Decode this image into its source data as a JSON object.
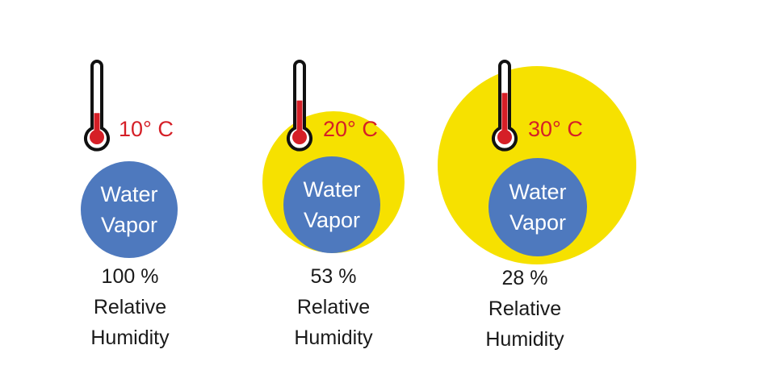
{
  "colors": {
    "vapor_fill": "#4e79be",
    "capacity_fill": "#f6e100",
    "thermometer_liquid": "#d51f27",
    "thermometer_outline": "#111111",
    "temperature_text": "#d51f27",
    "caption_text": "#1a1a1a"
  },
  "panels": [
    {
      "temperature": "10° C",
      "thermometer_fill_level": 0.33,
      "vapor_line1": "Water",
      "vapor_line2": "Vapor",
      "humidity_value": "100 %",
      "humidity_line1": "Relative",
      "humidity_line2": "Humidity"
    },
    {
      "temperature": "20° C",
      "thermometer_fill_level": 0.53,
      "vapor_line1": "Water",
      "vapor_line2": "Vapor",
      "humidity_value": "53 %",
      "humidity_line1": "Relative",
      "humidity_line2": "Humidity"
    },
    {
      "temperature": "30° C",
      "thermometer_fill_level": 0.65,
      "vapor_line1": "Water",
      "vapor_line2": "Vapor",
      "humidity_value": "28 %",
      "humidity_line1": "Relative",
      "humidity_line2": "Humidity"
    }
  ]
}
